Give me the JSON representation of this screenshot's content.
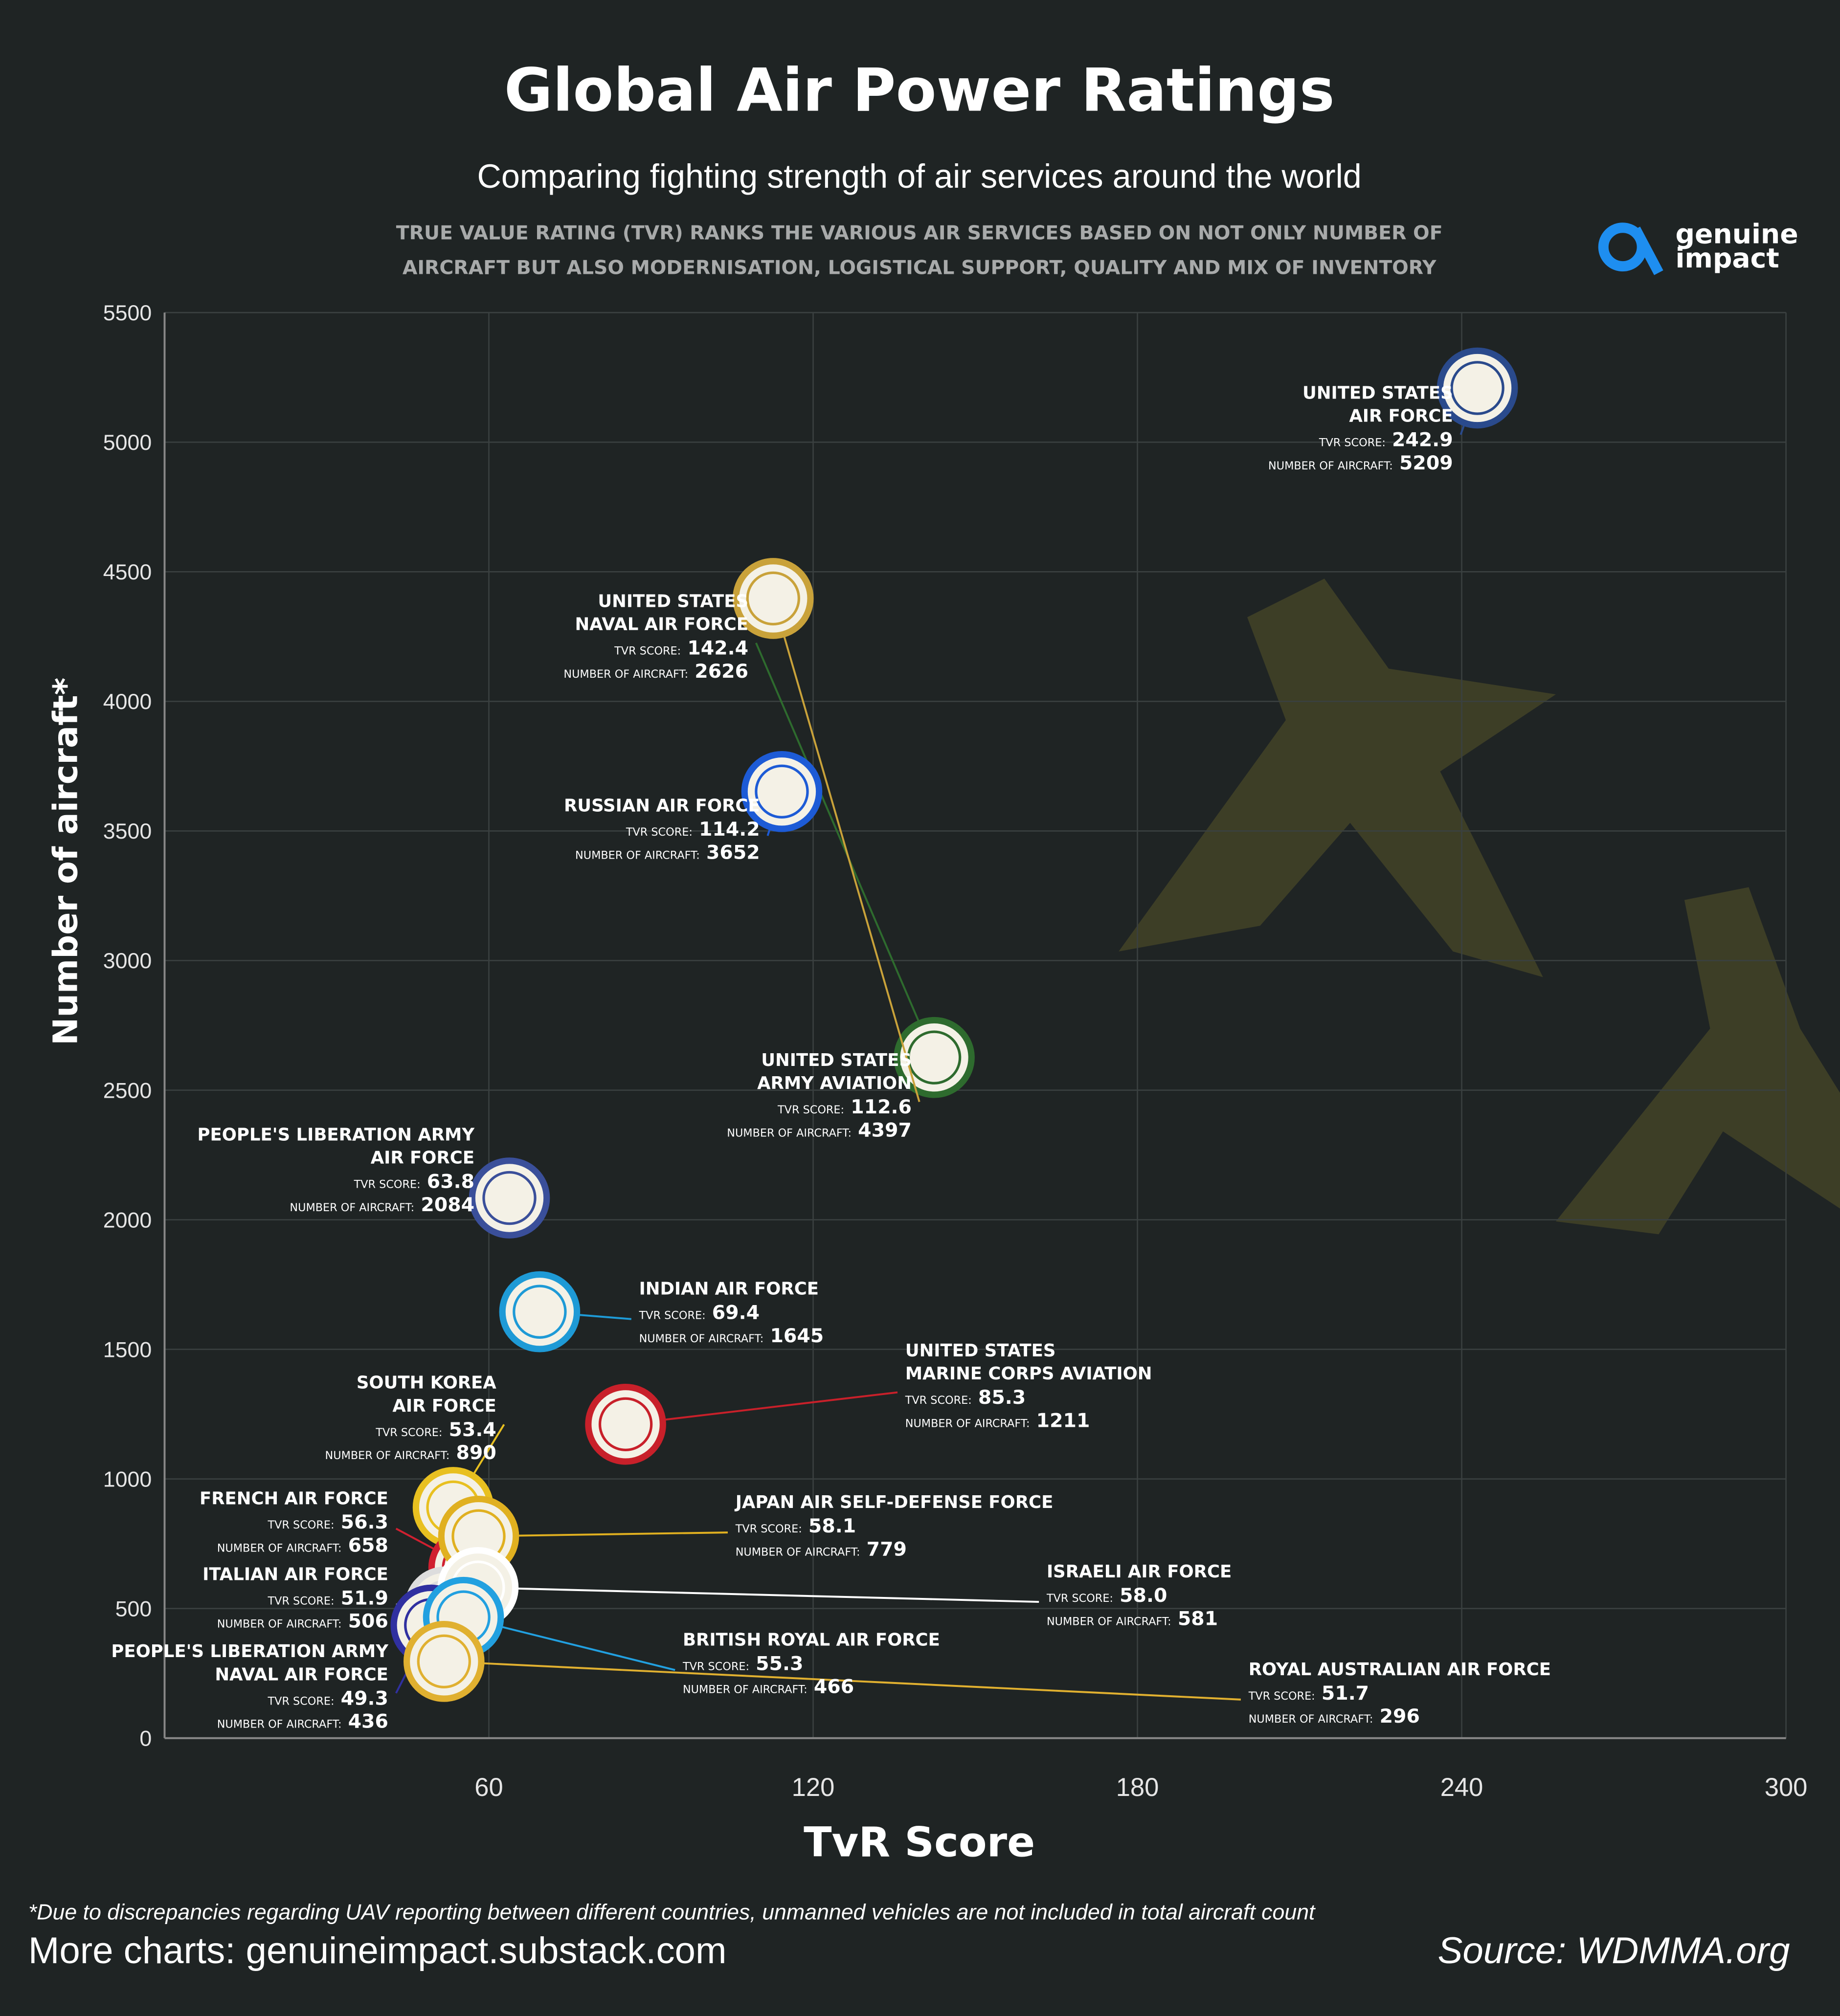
{
  "chart_data": {
    "type": "scatter",
    "title": "Global Air Power Ratings",
    "subtitle": "Comparing fighting strength of air services around the world",
    "description": [
      "TRUE VALUE RATING (TVR) RANKS THE VARIOUS AIR SERVICES BASED ON NOT ONLY NUMBER OF",
      "AIRCRAFT BUT ALSO MODERNISATION, LOGISTICAL SUPPORT, QUALITY AND MIX OF INVENTORY"
    ],
    "logo": [
      "genuine",
      "impact"
    ],
    "x_label": "TvR Score",
    "y_label": "Number of aircraft*",
    "xlim": [
      0,
      300
    ],
    "xticks": [
      60,
      120,
      180,
      240,
      300
    ],
    "ylim": [
      0,
      5500
    ],
    "yticks": [
      0,
      500,
      1000,
      1500,
      2000,
      2500,
      3000,
      3500,
      4000,
      4500,
      5000,
      5500
    ],
    "grid": true,
    "x_field_label": "TVR SCORE:",
    "y_field_label": "NUMBER OF AIRCRAFT:",
    "labels": [
      [
        "UNITED STATES",
        "AIR FORCE"
      ],
      [
        "UNITED STATES",
        "NAVAL AIR FORCE"
      ],
      [
        "RUSSIAN AIR FORCE"
      ],
      [
        "UNITED STATES",
        "ARMY AVIATION"
      ],
      [
        "PEOPLE'S LIBERATION ARMY",
        "AIR FORCE"
      ],
      [
        "INDIAN AIR FORCE"
      ],
      [
        "UNITED STATES",
        "MARINE CORPS AVIATION"
      ],
      [
        "SOUTH KOREA",
        "AIR FORCE"
      ],
      [
        "FRENCH AIR FORCE"
      ],
      [
        "JAPAN AIR SELF-DEFENSE FORCE"
      ],
      [
        "ITALIAN AIR FORCE"
      ],
      [
        "ISRAELI AIR FORCE"
      ],
      [
        "PEOPLE'S LIBERATION ARMY",
        "NAVAL AIR FORCE"
      ],
      [
        "BRITISH ROYAL AIR FORCE"
      ],
      [
        "ROYAL AUSTRALIAN AIR FORCE"
      ]
    ],
    "x": [
      242.9,
      142.4,
      114.2,
      112.6,
      63.8,
      69.4,
      85.3,
      53.4,
      56.3,
      58.1,
      51.9,
      58.0,
      49.3,
      55.3,
      51.7
    ],
    "x_value_labels": [
      "242.9",
      "142.4",
      "114.2",
      "112.6",
      "63.8",
      "69.4",
      "85.3",
      "53.4",
      "56.3",
      "58.1",
      "51.9",
      "58.0",
      "49.3",
      "55.3",
      "51.7"
    ],
    "values": [
      5209,
      2626,
      3652,
      4397,
      2084,
      1645,
      1211,
      890,
      658,
      779,
      506,
      581,
      436,
      466,
      296
    ],
    "colors": [
      "#2a4a8c",
      "#2e6b2e",
      "#1d5bd6",
      "#c9a23a",
      "#3a4f9a",
      "#1e9ad6",
      "#c8202a",
      "#e8c020",
      "#d02030",
      "#e0b020",
      "#dddddd",
      "#ffffff",
      "#3030a0",
      "#22a0e0",
      "#e0b030"
    ],
    "footnote": "*Due to discrepancies regarding UAV reporting between different countries, unmanned vehicles are not included in total aircraft count",
    "more_charts": "More charts: genuineimpact.substack.com",
    "source": "Source: WDMMA.org"
  }
}
